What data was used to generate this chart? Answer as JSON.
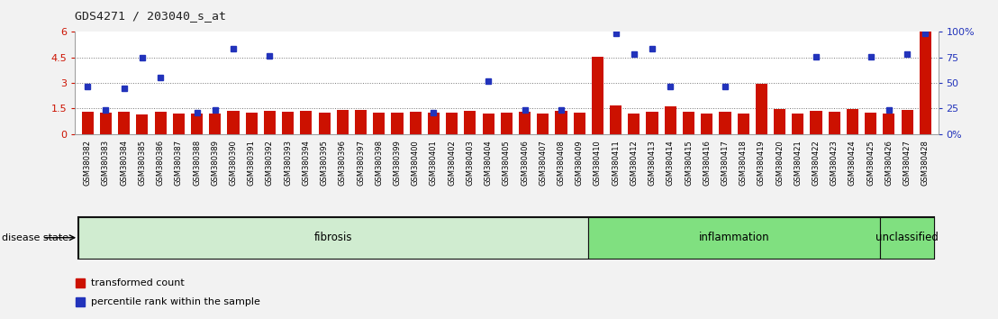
{
  "title": "GDS4271 / 203040_s_at",
  "samples": [
    "GSM380382",
    "GSM380383",
    "GSM380384",
    "GSM380385",
    "GSM380386",
    "GSM380387",
    "GSM380388",
    "GSM380389",
    "GSM380390",
    "GSM380391",
    "GSM380392",
    "GSM380393",
    "GSM380394",
    "GSM380395",
    "GSM380396",
    "GSM380397",
    "GSM380398",
    "GSM380399",
    "GSM380400",
    "GSM380401",
    "GSM380402",
    "GSM380403",
    "GSM380404",
    "GSM380405",
    "GSM380406",
    "GSM380407",
    "GSM380408",
    "GSM380409",
    "GSM380410",
    "GSM380411",
    "GSM380412",
    "GSM380413",
    "GSM380414",
    "GSM380415",
    "GSM380416",
    "GSM380417",
    "GSM380418",
    "GSM380419",
    "GSM380420",
    "GSM380421",
    "GSM380422",
    "GSM380423",
    "GSM380424",
    "GSM380425",
    "GSM380426",
    "GSM380427",
    "GSM380428"
  ],
  "red_bars": [
    1.3,
    1.25,
    1.3,
    1.15,
    1.3,
    1.2,
    1.2,
    1.22,
    1.35,
    1.28,
    1.35,
    1.3,
    1.35,
    1.28,
    1.4,
    1.4,
    1.25,
    1.25,
    1.3,
    1.25,
    1.25,
    1.35,
    1.18,
    1.25,
    1.3,
    1.18,
    1.35,
    1.25,
    4.55,
    1.7,
    1.2,
    1.3,
    1.6,
    1.3,
    1.2,
    1.3,
    1.2,
    2.95,
    1.45,
    1.2,
    1.35,
    1.3,
    1.45,
    1.25,
    1.2,
    1.4,
    6.0
  ],
  "blue_dots": [
    2.8,
    1.4,
    2.7,
    4.5,
    3.3,
    null,
    1.25,
    1.4,
    5.0,
    null,
    4.6,
    null,
    null,
    null,
    null,
    null,
    null,
    null,
    null,
    1.25,
    null,
    null,
    3.1,
    null,
    1.4,
    null,
    1.4,
    null,
    null,
    5.9,
    4.7,
    5.0,
    2.8,
    null,
    null,
    2.8,
    null,
    null,
    null,
    null,
    4.55,
    null,
    null,
    4.55,
    1.4,
    4.7,
    5.9
  ],
  "groups": [
    {
      "label": "fibrosis",
      "start": 0,
      "end": 27,
      "color": "#d0ecd0"
    },
    {
      "label": "inflammation",
      "start": 28,
      "end": 43,
      "color": "#80e080"
    },
    {
      "label": "unclassified",
      "start": 44,
      "end": 46,
      "color": "#80e080"
    }
  ],
  "ylim_left": [
    0,
    6
  ],
  "yticks_left": [
    0,
    1.5,
    3.0,
    4.5,
    6.0
  ],
  "ytick_labels_left": [
    "0",
    "1.5",
    "3",
    "4.5",
    "6"
  ],
  "ytick_labels_right": [
    "0%",
    "25",
    "50",
    "75",
    "100%"
  ],
  "hlines": [
    1.5,
    3.0,
    4.5
  ],
  "bar_color": "#cc1100",
  "dot_color": "#2233bb",
  "bg_color": "#f2f2f2",
  "plot_bg": "#ffffff",
  "legend_red_label": "transformed count",
  "legend_blue_label": "percentile rank within the sample",
  "disease_state_label": "disease state",
  "title_color": "#222222"
}
